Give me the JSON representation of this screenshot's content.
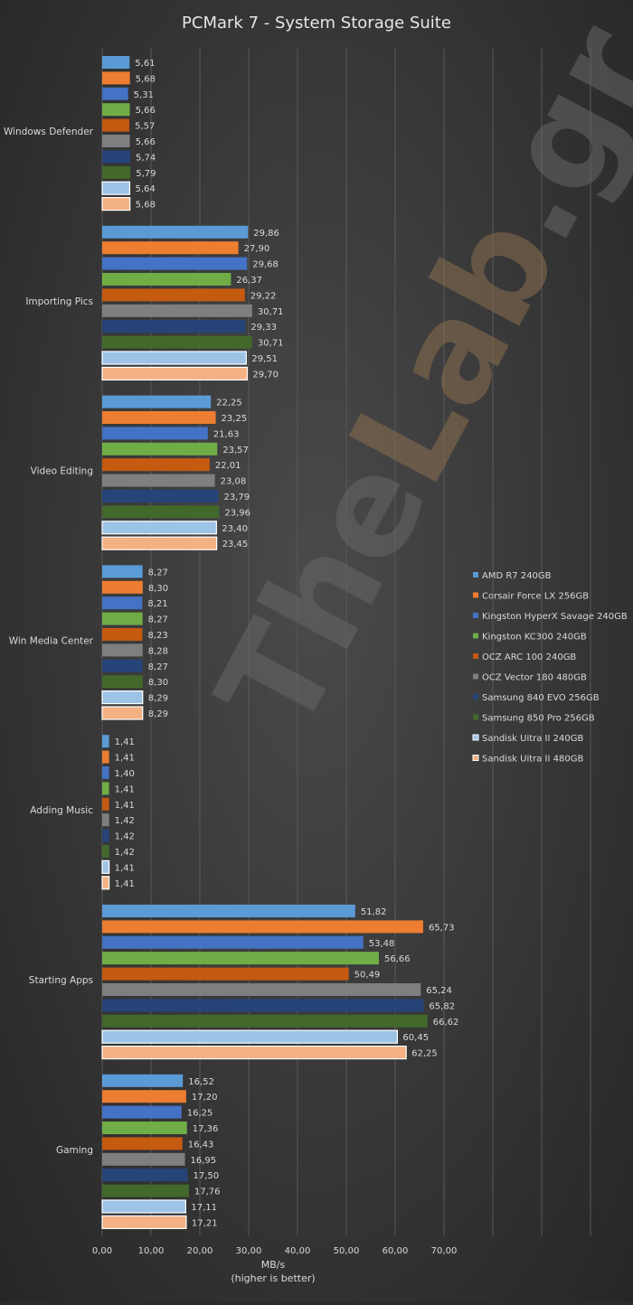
{
  "chart_data": {
    "type": "bar",
    "orientation": "horizontal",
    "title": "PCMark 7 - System Storage Suite",
    "xlabel": "MB/s",
    "xlabel_note": "(higher is better)",
    "ylabel": "",
    "xlim": [
      0,
      80
    ],
    "xticks": [
      "0,00",
      "10,00",
      "20,00",
      "30,00",
      "40,00",
      "50,00",
      "60,00",
      "70,00"
    ],
    "grid": true,
    "legend_position": "right",
    "watermark": "TheLab.gr",
    "categories": [
      "Windows Defender",
      "Importing Pics",
      "Video Editing",
      "Win Media Center",
      "Adding Music",
      "Starting Apps",
      "Gaming"
    ],
    "series": [
      {
        "name": "AMD R7 240GB",
        "color": "#5b9bd5",
        "values": [
          5.61,
          29.86,
          22.25,
          8.27,
          1.41,
          51.82,
          16.52
        ],
        "labels": [
          "5,61",
          "29,86",
          "22,25",
          "8,27",
          "1,41",
          "51,82",
          "16,52"
        ]
      },
      {
        "name": "Corsair Force LX 256GB",
        "color": "#ed7d31",
        "values": [
          5.68,
          27.9,
          23.25,
          8.3,
          1.41,
          65.73,
          17.2
        ],
        "labels": [
          "5,68",
          "27,90",
          "23,25",
          "8,30",
          "1,41",
          "65,73",
          "17,20"
        ]
      },
      {
        "name": "Kingston HyperX Savage 240GB",
        "color": "#4472c4",
        "values": [
          5.31,
          29.68,
          21.63,
          8.21,
          1.4,
          53.48,
          16.25
        ],
        "labels": [
          "5,31",
          "29,68",
          "21,63",
          "8,21",
          "1,40",
          "53,48",
          "16,25"
        ]
      },
      {
        "name": "Kingston KC300 240GB",
        "color": "#70ad47",
        "values": [
          5.66,
          26.37,
          23.57,
          8.27,
          1.41,
          56.66,
          17.36
        ],
        "labels": [
          "5,66",
          "26,37",
          "23,57",
          "8,27",
          "1,41",
          "56,66",
          "17,36"
        ]
      },
      {
        "name": "OCZ ARC 100 240GB",
        "color": "#c55a11",
        "values": [
          5.57,
          29.22,
          22.01,
          8.23,
          1.41,
          50.49,
          16.43
        ],
        "labels": [
          "5,57",
          "29,22",
          "22,01",
          "8,23",
          "1,41",
          "50,49",
          "16,43"
        ]
      },
      {
        "name": "OCZ Vector 180 480GB",
        "color": "#7f7f7f",
        "values": [
          5.66,
          30.71,
          23.08,
          8.28,
          1.42,
          65.24,
          16.95
        ],
        "labels": [
          "5,66",
          "30,71",
          "23,08",
          "8,28",
          "1,42",
          "65,24",
          "16,95"
        ]
      },
      {
        "name": "Samsung 840 EVO 256GB",
        "color": "#264478",
        "values": [
          5.74,
          29.33,
          23.79,
          8.27,
          1.42,
          65.82,
          17.5
        ],
        "labels": [
          "5,74",
          "29,33",
          "23,79",
          "8,27",
          "1,42",
          "65,82",
          "17,50"
        ]
      },
      {
        "name": "Samsung 850 Pro 256GB",
        "color": "#43682b",
        "values": [
          5.79,
          30.71,
          23.96,
          8.3,
          1.42,
          66.62,
          17.76
        ],
        "labels": [
          "5,79",
          "30,71",
          "23,96",
          "8,30",
          "1,42",
          "66,62",
          "17,76"
        ]
      },
      {
        "name": "Sandisk Uitra II 240GB",
        "color": "#9dc3e6",
        "outlined": true,
        "values": [
          5.64,
          29.51,
          23.4,
          8.29,
          1.41,
          60.45,
          17.11
        ],
        "labels": [
          "5,64",
          "29,51",
          "23,40",
          "8,29",
          "1,41",
          "60,45",
          "17,11"
        ]
      },
      {
        "name": "Sandisk Uitra II 480GB",
        "color": "#f4b183",
        "outlined": true,
        "values": [
          5.68,
          29.7,
          23.45,
          8.29,
          1.41,
          62.25,
          17.21
        ],
        "labels": [
          "5,68",
          "29,70",
          "23,45",
          "8,29",
          "1,41",
          "62,25",
          "17,21"
        ]
      }
    ]
  }
}
